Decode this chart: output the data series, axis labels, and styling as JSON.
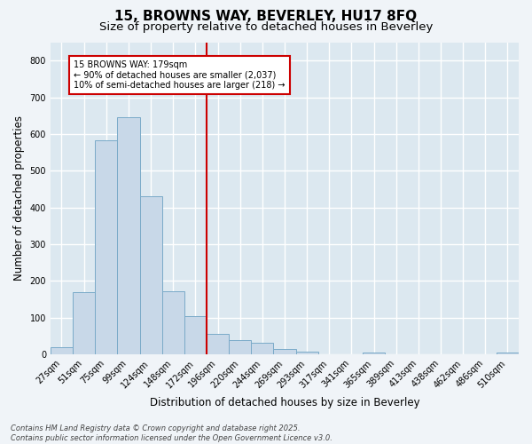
{
  "title1": "15, BROWNS WAY, BEVERLEY, HU17 8FQ",
  "title2": "Size of property relative to detached houses in Beverley",
  "xlabel": "Distribution of detached houses by size in Beverley",
  "ylabel": "Number of detached properties",
  "categories": [
    "27sqm",
    "51sqm",
    "75sqm",
    "99sqm",
    "124sqm",
    "148sqm",
    "172sqm",
    "196sqm",
    "220sqm",
    "244sqm",
    "269sqm",
    "293sqm",
    "317sqm",
    "341sqm",
    "365sqm",
    "389sqm",
    "413sqm",
    "438sqm",
    "462sqm",
    "486sqm",
    "510sqm"
  ],
  "values": [
    20,
    168,
    582,
    645,
    430,
    172,
    103,
    55,
    38,
    30,
    15,
    8,
    0,
    0,
    5,
    0,
    0,
    0,
    0,
    0,
    5
  ],
  "bar_color": "#c8d8e8",
  "bar_edge_color": "#7aaac8",
  "vline_color": "#cc0000",
  "annotation_text": "15 BROWNS WAY: 179sqm\n← 90% of detached houses are smaller (2,037)\n10% of semi-detached houses are larger (218) →",
  "annotation_box_color": "#ffffff",
  "annotation_box_edge": "#cc0000",
  "ylim": [
    0,
    850
  ],
  "yticks": [
    0,
    100,
    200,
    300,
    400,
    500,
    600,
    700,
    800
  ],
  "background_color": "#dce8f0",
  "grid_color": "#ffffff",
  "fig_background": "#f0f4f8",
  "footer_text": "Contains HM Land Registry data © Crown copyright and database right 2025.\nContains public sector information licensed under the Open Government Licence v3.0.",
  "title_fontsize": 11,
  "subtitle_fontsize": 9.5,
  "tick_fontsize": 7,
  "ylabel_fontsize": 8.5,
  "xlabel_fontsize": 8.5,
  "footer_fontsize": 6
}
